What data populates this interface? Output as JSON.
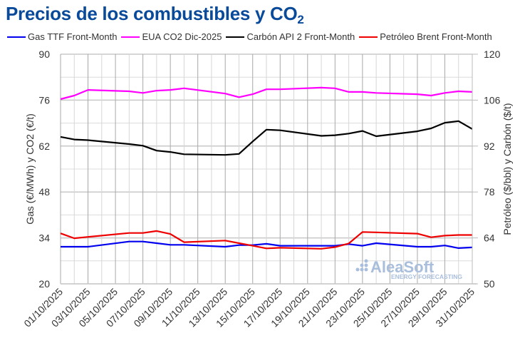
{
  "title": {
    "main": "Precios de los combustibles y CO",
    "sub": "2"
  },
  "legend": [
    {
      "label": "Gas TTF Front-Month",
      "color": "#0000ee"
    },
    {
      "label": "EUA CO2 Dic-2025",
      "color": "#ff00ff"
    },
    {
      "label": "Carbón API 2 Front-Month",
      "color": "#000000"
    },
    {
      "label": "Petróleo Brent Front-Month",
      "color": "#ee0000"
    }
  ],
  "axes": {
    "left_label": "Gas (€/MWh) y CO2 (€/t)",
    "right_label": "Petróleo ($/bbl) y Carbón ($/t)",
    "left_ticks": [
      "90",
      "76",
      "62",
      "48",
      "34",
      "20"
    ],
    "right_ticks": [
      "120",
      "106",
      "92",
      "78",
      "64",
      "50"
    ],
    "x_ticks": [
      "01/10/2025",
      "03/10/2025",
      "05/10/2025",
      "07/10/2025",
      "09/10/2025",
      "11/10/2025",
      "13/10/2025",
      "15/10/2025",
      "17/10/2025",
      "19/10/2025",
      "21/10/2025",
      "23/10/2025",
      "25/10/2025",
      "27/10/2025",
      "29/10/2025",
      "31/10/2025"
    ]
  },
  "watermark": {
    "brand": "AleaSoft",
    "tagline": "ENERGY FORECASTING"
  },
  "chart_data": {
    "type": "line",
    "title": "Precios de los combustibles y CO2",
    "xlabel": "",
    "ylabel": "Gas (€/MWh) y CO2 (€/t)",
    "y2label": "Petróleo ($/bbl) y Carbón ($/t)",
    "ylim": [
      20,
      90
    ],
    "y2lim": [
      50,
      120
    ],
    "grid": true,
    "legend_position": "top",
    "x": [
      "01/10/2025",
      "02/10/2025",
      "03/10/2025",
      "06/10/2025",
      "07/10/2025",
      "08/10/2025",
      "09/10/2025",
      "10/10/2025",
      "13/10/2025",
      "14/10/2025",
      "15/10/2025",
      "16/10/2025",
      "17/10/2025",
      "20/10/2025",
      "21/10/2025",
      "22/10/2025",
      "23/10/2025",
      "24/10/2025",
      "27/10/2025",
      "28/10/2025",
      "29/10/2025",
      "30/10/2025",
      "31/10/2025"
    ],
    "x_day": [
      1,
      2,
      3,
      6,
      7,
      8,
      9,
      10,
      13,
      14,
      15,
      16,
      17,
      20,
      21,
      22,
      23,
      24,
      27,
      28,
      29,
      30,
      31
    ],
    "series": [
      {
        "name": "Gas TTF Front-Month",
        "axis": "left",
        "color": "#0000ee",
        "values": [
          31.3,
          31.3,
          31.3,
          32.9,
          32.9,
          32.4,
          31.9,
          31.9,
          31.3,
          31.8,
          31.8,
          32.2,
          31.6,
          31.6,
          31.6,
          32.1,
          31.6,
          32.4,
          31.3,
          31.3,
          31.7,
          30.9,
          31.1
        ]
      },
      {
        "name": "EUA CO2 Dic-2025",
        "axis": "left",
        "color": "#ff00ff",
        "values": [
          76.3,
          77.4,
          79.1,
          78.7,
          78.2,
          78.9,
          79.1,
          79.6,
          78.0,
          76.9,
          77.8,
          79.3,
          79.3,
          79.8,
          79.6,
          78.5,
          78.5,
          78.2,
          77.8,
          77.4,
          78.2,
          78.7,
          78.5
        ]
      },
      {
        "name": "Carbón API 2 Front-Month",
        "axis": "right",
        "color": "#000000",
        "values": [
          94.8,
          94.0,
          93.8,
          92.6,
          92.1,
          90.6,
          90.2,
          89.5,
          89.3,
          89.6,
          93.4,
          97.0,
          96.8,
          95.1,
          95.3,
          95.8,
          96.6,
          95.0,
          96.5,
          97.4,
          99.1,
          99.6,
          97.2
        ]
      },
      {
        "name": "Petróleo Brent Front-Month",
        "axis": "right",
        "color": "#ee0000",
        "values": [
          65.4,
          63.9,
          64.3,
          65.5,
          65.5,
          66.1,
          65.2,
          62.7,
          63.2,
          62.4,
          61.6,
          60.8,
          61.0,
          60.7,
          61.2,
          62.3,
          65.8,
          65.7,
          65.3,
          64.2,
          64.7,
          64.9,
          64.9
        ]
      }
    ]
  }
}
